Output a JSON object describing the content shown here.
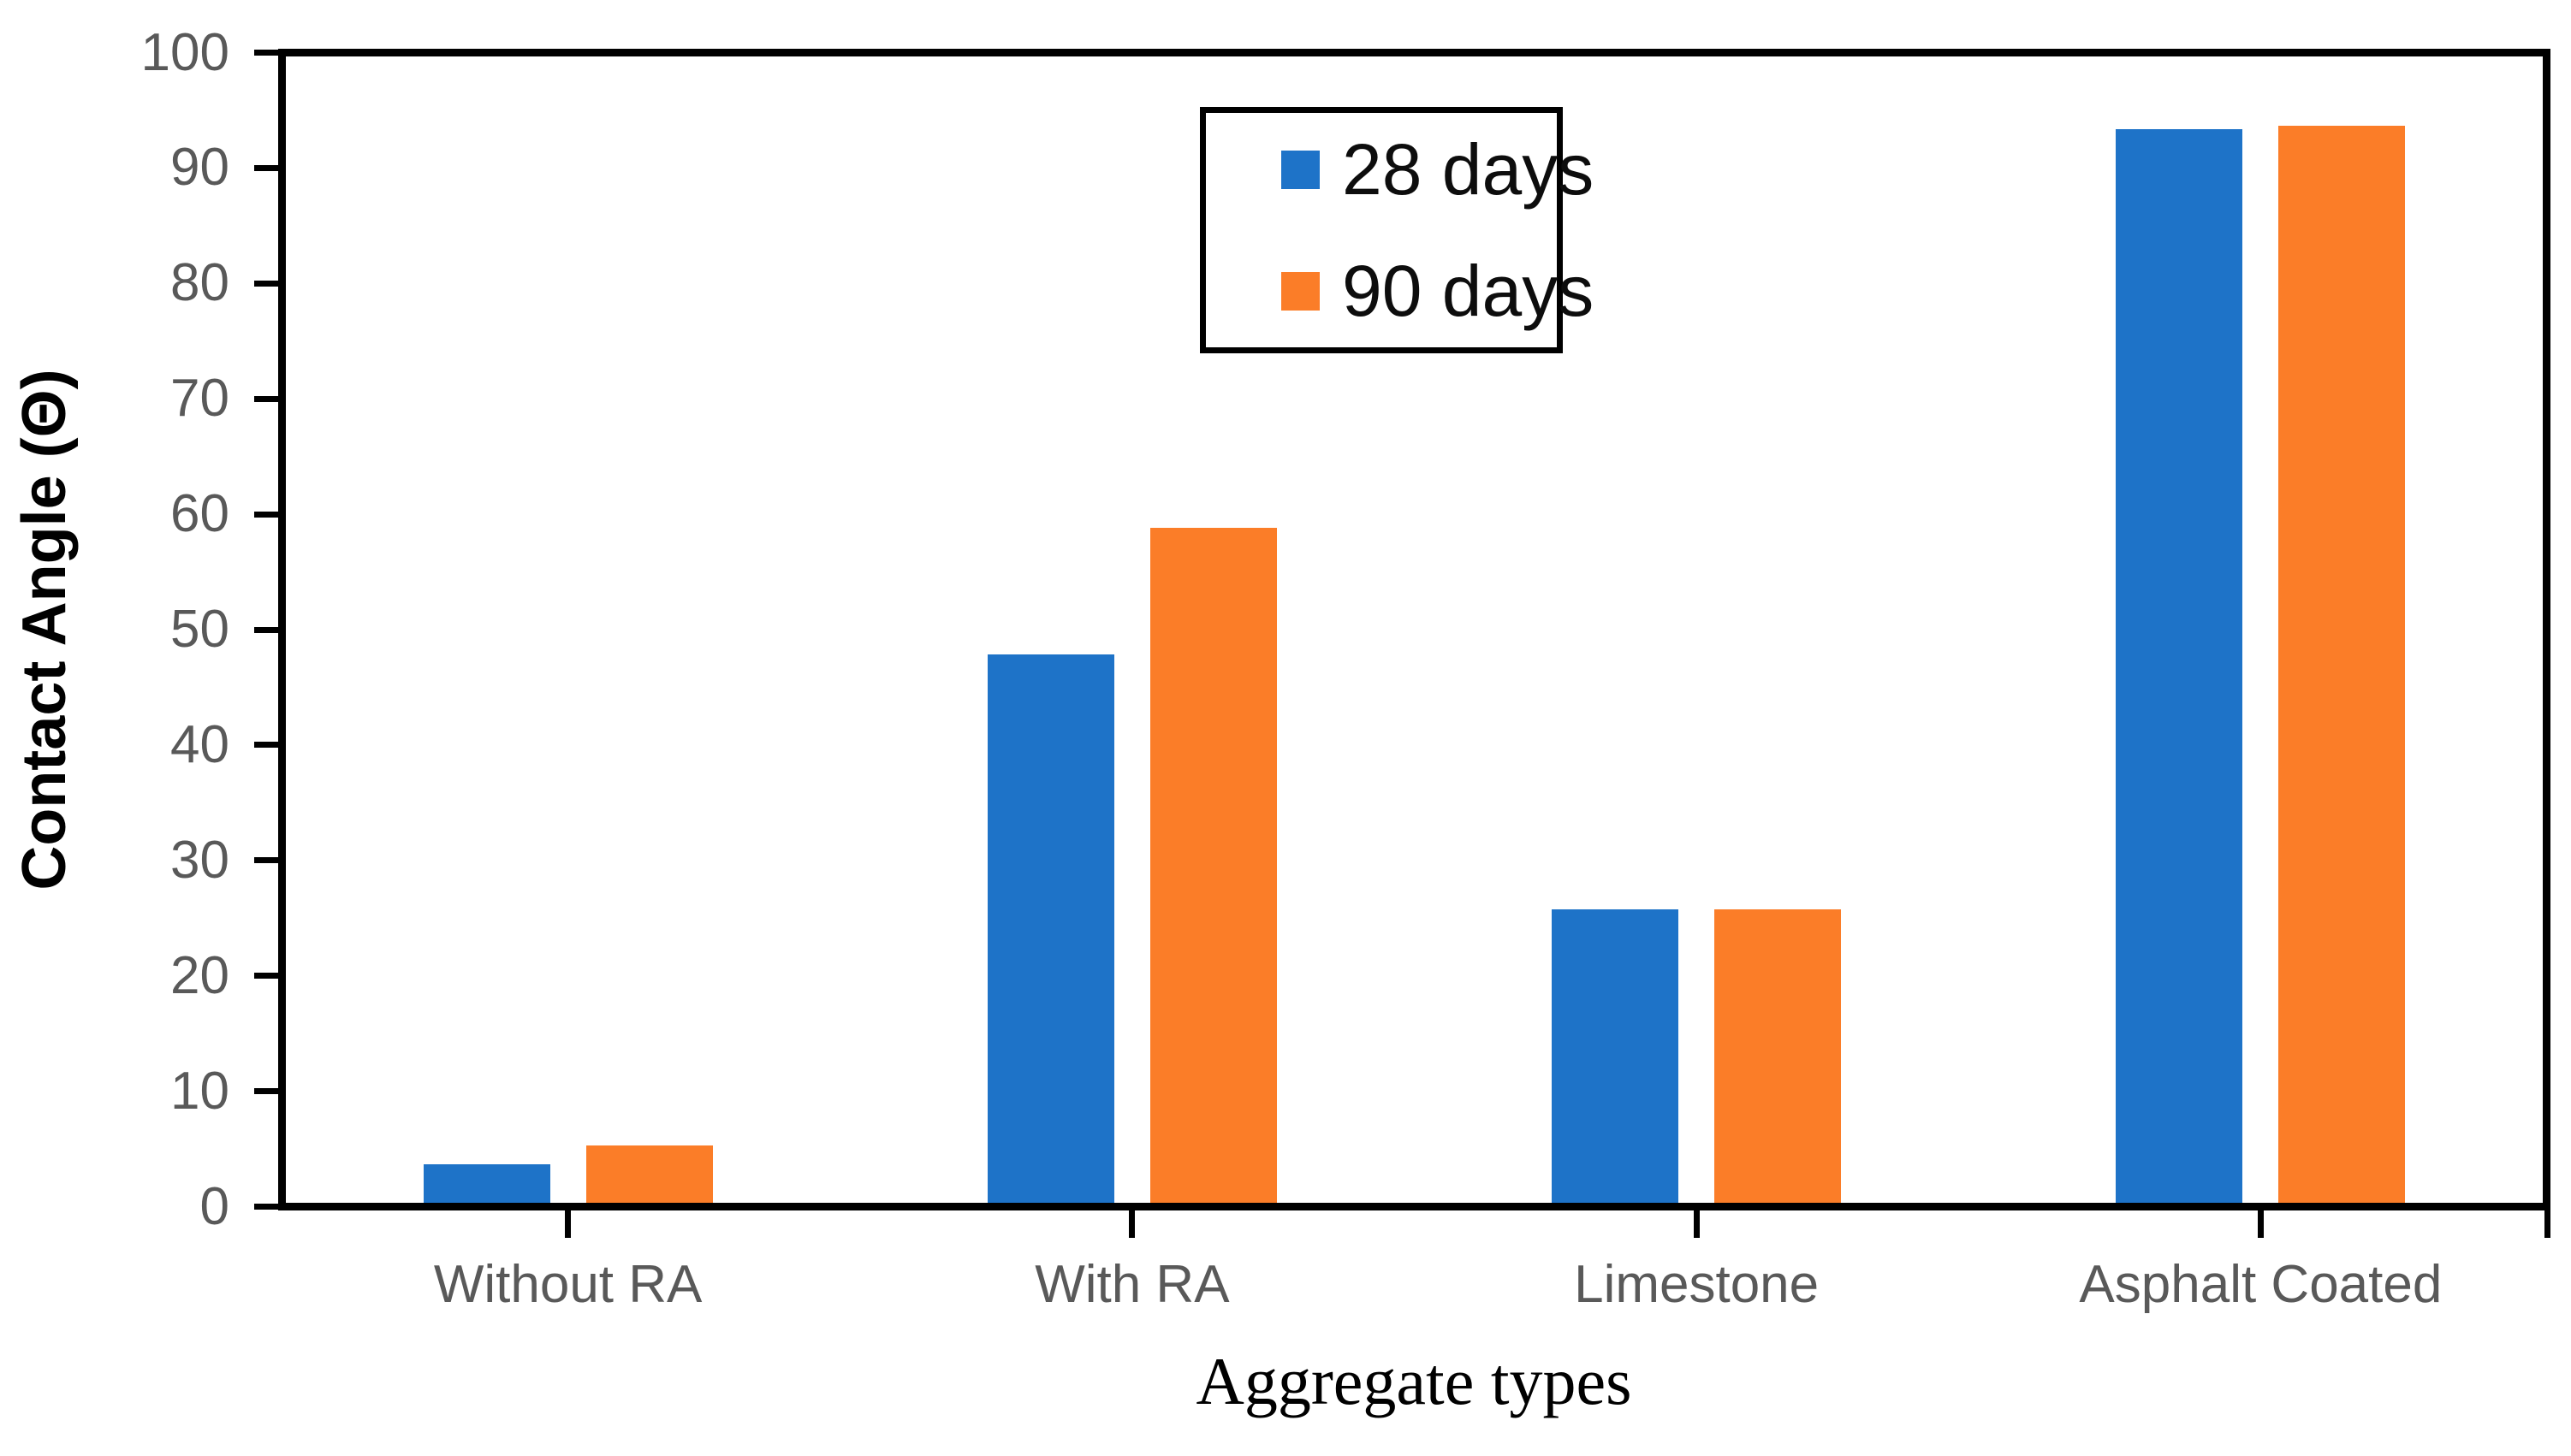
{
  "chart_data": {
    "type": "bar",
    "title": "",
    "categories": [
      "Without RA",
      "With RA",
      "Limestone",
      "Asphalt Coated"
    ],
    "series": [
      {
        "name": "28 days",
        "color": "#1E73C8",
        "values": [
          3.3,
          47.5,
          25.4,
          93.0
        ]
      },
      {
        "name": "90 days",
        "color": "#FB7D28",
        "values": [
          5.0,
          58.5,
          25.4,
          93.3
        ]
      }
    ],
    "xlabel": "Aggregate types",
    "ylabel": "Contact Angle (Θ)",
    "ylim": [
      0,
      100
    ],
    "ytick_step": 10,
    "yticks": [
      0,
      10,
      20,
      30,
      40,
      50,
      60,
      70,
      80,
      90,
      100
    ],
    "grid": false,
    "legend": {
      "position": "top-center-inside",
      "entries": [
        "28 days",
        "90 days"
      ]
    },
    "style": {
      "axis_color": "#000000",
      "tick_label_color": "#595959",
      "background": "#FFFFFF",
      "plot_border": true
    }
  }
}
